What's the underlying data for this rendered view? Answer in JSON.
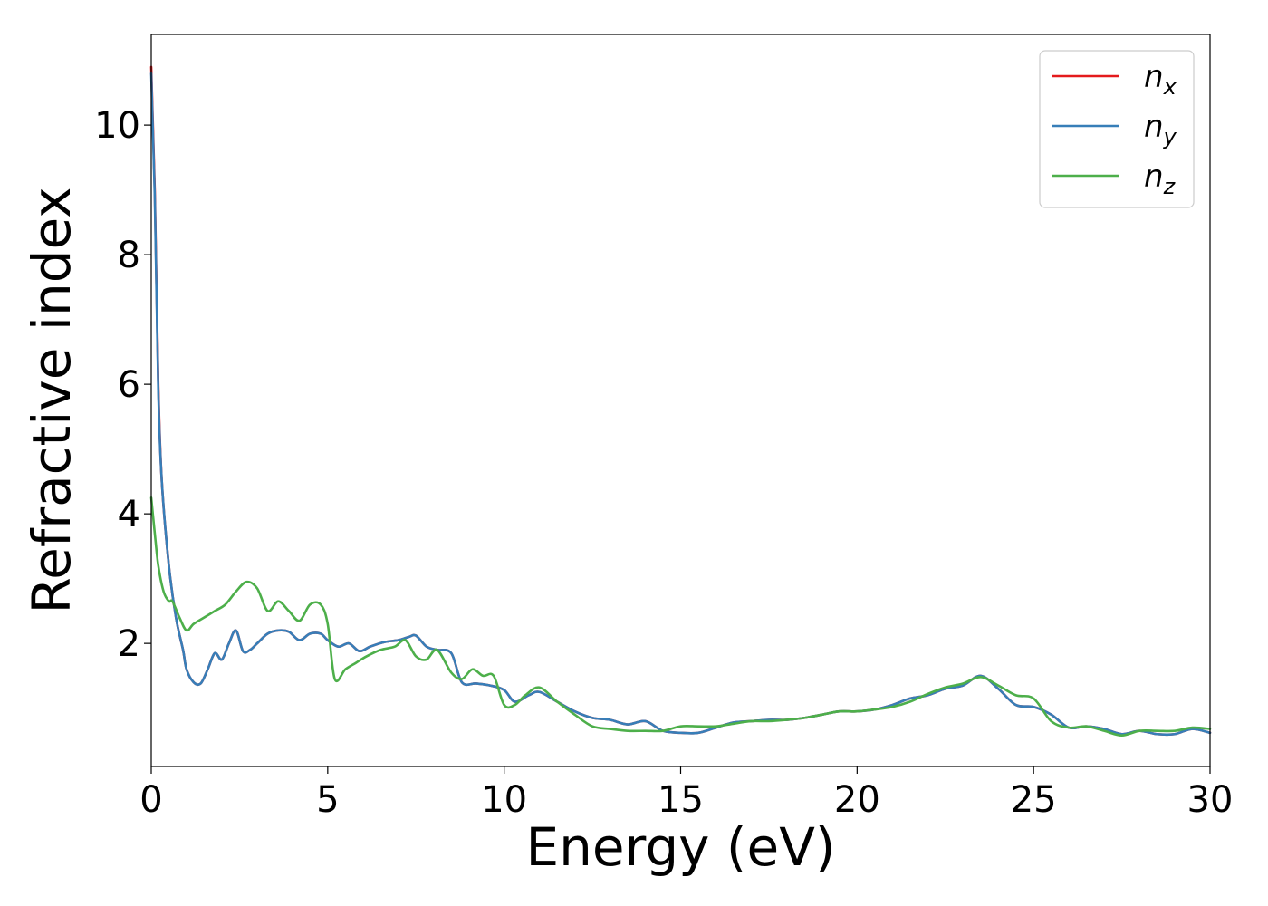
{
  "chart_data": {
    "type": "line",
    "title": "",
    "xlabel": "Energy (eV)",
    "ylabel": "Refractive index",
    "xlim": [
      0,
      30
    ],
    "ylim": [
      0.1,
      11.4
    ],
    "xticks": [
      0,
      5,
      10,
      15,
      20,
      25,
      30
    ],
    "yticks": [
      2,
      4,
      6,
      8,
      10
    ],
    "grid": false,
    "legend": {
      "position": "top-right",
      "entries": [
        {
          "base": "n",
          "sub": "x",
          "color": "#e41a1c"
        },
        {
          "base": "n",
          "sub": "y",
          "color": "#377eb8"
        },
        {
          "base": "n",
          "sub": "z",
          "color": "#4daf4a"
        }
      ]
    },
    "series": [
      {
        "name": "n_x",
        "color": "#e41a1c",
        "x": [
          0,
          0.1,
          0.2,
          0.3,
          0.5,
          0.7,
          0.9,
          1.0,
          1.2,
          1.4,
          1.6,
          1.8,
          2.0,
          2.2,
          2.4,
          2.6,
          2.8,
          3.0,
          3.3,
          3.6,
          3.9,
          4.2,
          4.5,
          4.8,
          5.0,
          5.3,
          5.6,
          5.9,
          6.2,
          6.6,
          7.0,
          7.3,
          7.5,
          7.8,
          8.1,
          8.5,
          8.8,
          9.2,
          9.6,
          10.0,
          10.3,
          10.7,
          11.0,
          11.5,
          12.0,
          12.5,
          13.0,
          13.5,
          14.0,
          14.5,
          15.0,
          15.5,
          16.0,
          16.5,
          17.0,
          17.5,
          18.0,
          18.5,
          19.0,
          19.5,
          20.0,
          20.5,
          21.0,
          21.5,
          22.0,
          22.5,
          23.0,
          23.5,
          24.0,
          24.5,
          25.0,
          25.5,
          26.0,
          26.5,
          27.0,
          27.5,
          28.0,
          28.5,
          29.0,
          29.5,
          30.0
        ],
        "y": [
          10.9,
          9.0,
          6.0,
          4.5,
          3.2,
          2.4,
          1.9,
          1.6,
          1.4,
          1.38,
          1.6,
          1.85,
          1.75,
          2.0,
          2.2,
          1.88,
          1.9,
          2.0,
          2.15,
          2.2,
          2.18,
          2.05,
          2.15,
          2.15,
          2.05,
          1.95,
          2.0,
          1.88,
          1.95,
          2.02,
          2.05,
          2.1,
          2.12,
          1.95,
          1.9,
          1.85,
          1.4,
          1.38,
          1.35,
          1.28,
          1.1,
          1.2,
          1.25,
          1.1,
          0.95,
          0.85,
          0.82,
          0.75,
          0.8,
          0.65,
          0.62,
          0.62,
          0.7,
          0.78,
          0.8,
          0.82,
          0.82,
          0.85,
          0.9,
          0.95,
          0.95,
          0.98,
          1.05,
          1.15,
          1.2,
          1.3,
          1.35,
          1.5,
          1.3,
          1.05,
          1.02,
          0.9,
          0.7,
          0.72,
          0.68,
          0.6,
          0.65,
          0.6,
          0.6,
          0.68,
          0.62
        ]
      },
      {
        "name": "n_y",
        "color": "#377eb8",
        "x": [
          0,
          0.1,
          0.2,
          0.3,
          0.5,
          0.7,
          0.9,
          1.0,
          1.2,
          1.4,
          1.6,
          1.8,
          2.0,
          2.2,
          2.4,
          2.6,
          2.8,
          3.0,
          3.3,
          3.6,
          3.9,
          4.2,
          4.5,
          4.8,
          5.0,
          5.3,
          5.6,
          5.9,
          6.2,
          6.6,
          7.0,
          7.3,
          7.5,
          7.8,
          8.1,
          8.5,
          8.8,
          9.2,
          9.6,
          10.0,
          10.3,
          10.7,
          11.0,
          11.5,
          12.0,
          12.5,
          13.0,
          13.5,
          14.0,
          14.5,
          15.0,
          15.5,
          16.0,
          16.5,
          17.0,
          17.5,
          18.0,
          18.5,
          19.0,
          19.5,
          20.0,
          20.5,
          21.0,
          21.5,
          22.0,
          22.5,
          23.0,
          23.5,
          24.0,
          24.5,
          25.0,
          25.5,
          26.0,
          26.5,
          27.0,
          27.5,
          28.0,
          28.5,
          29.0,
          29.5,
          30.0
        ],
        "y": [
          10.8,
          8.9,
          5.9,
          4.5,
          3.2,
          2.4,
          1.9,
          1.6,
          1.4,
          1.38,
          1.6,
          1.85,
          1.75,
          2.0,
          2.2,
          1.88,
          1.9,
          2.0,
          2.15,
          2.2,
          2.18,
          2.05,
          2.15,
          2.15,
          2.05,
          1.95,
          2.0,
          1.88,
          1.95,
          2.02,
          2.05,
          2.1,
          2.12,
          1.95,
          1.9,
          1.85,
          1.4,
          1.38,
          1.35,
          1.28,
          1.1,
          1.2,
          1.25,
          1.1,
          0.95,
          0.85,
          0.82,
          0.75,
          0.8,
          0.65,
          0.62,
          0.62,
          0.7,
          0.78,
          0.8,
          0.82,
          0.82,
          0.85,
          0.9,
          0.95,
          0.95,
          0.98,
          1.05,
          1.15,
          1.2,
          1.3,
          1.35,
          1.5,
          1.3,
          1.05,
          1.02,
          0.9,
          0.7,
          0.72,
          0.68,
          0.6,
          0.65,
          0.6,
          0.6,
          0.68,
          0.62
        ]
      },
      {
        "name": "n_z",
        "color": "#4daf4a",
        "x": [
          0,
          0.1,
          0.2,
          0.35,
          0.5,
          0.6,
          0.8,
          1.0,
          1.2,
          1.5,
          1.8,
          2.1,
          2.4,
          2.7,
          3.0,
          3.3,
          3.6,
          3.9,
          4.2,
          4.5,
          4.8,
          5.0,
          5.2,
          5.5,
          5.8,
          6.1,
          6.5,
          6.9,
          7.2,
          7.5,
          7.8,
          8.1,
          8.5,
          8.8,
          9.1,
          9.4,
          9.7,
          10.0,
          10.3,
          10.6,
          11.0,
          11.5,
          12.0,
          12.5,
          13.0,
          13.5,
          14.0,
          14.5,
          15.0,
          15.5,
          16.0,
          16.5,
          17.0,
          17.5,
          18.0,
          18.5,
          19.0,
          19.5,
          20.0,
          20.5,
          21.0,
          21.5,
          22.0,
          22.5,
          23.0,
          23.5,
          24.0,
          24.5,
          25.0,
          25.5,
          26.0,
          26.5,
          27.0,
          27.5,
          28.0,
          28.5,
          29.0,
          29.5,
          30.0
        ],
        "y": [
          4.25,
          3.7,
          3.2,
          2.8,
          2.65,
          2.65,
          2.4,
          2.2,
          2.3,
          2.4,
          2.5,
          2.6,
          2.8,
          2.95,
          2.85,
          2.5,
          2.65,
          2.5,
          2.35,
          2.6,
          2.6,
          2.3,
          1.45,
          1.6,
          1.7,
          1.8,
          1.9,
          1.95,
          2.05,
          1.8,
          1.75,
          1.9,
          1.55,
          1.45,
          1.6,
          1.5,
          1.5,
          1.05,
          1.05,
          1.2,
          1.32,
          1.1,
          0.9,
          0.72,
          0.68,
          0.65,
          0.65,
          0.65,
          0.72,
          0.72,
          0.72,
          0.76,
          0.8,
          0.8,
          0.82,
          0.85,
          0.9,
          0.95,
          0.95,
          0.98,
          1.02,
          1.1,
          1.22,
          1.32,
          1.38,
          1.48,
          1.35,
          1.2,
          1.15,
          0.8,
          0.7,
          0.72,
          0.65,
          0.58,
          0.65,
          0.65,
          0.65,
          0.7,
          0.68
        ]
      }
    ]
  }
}
